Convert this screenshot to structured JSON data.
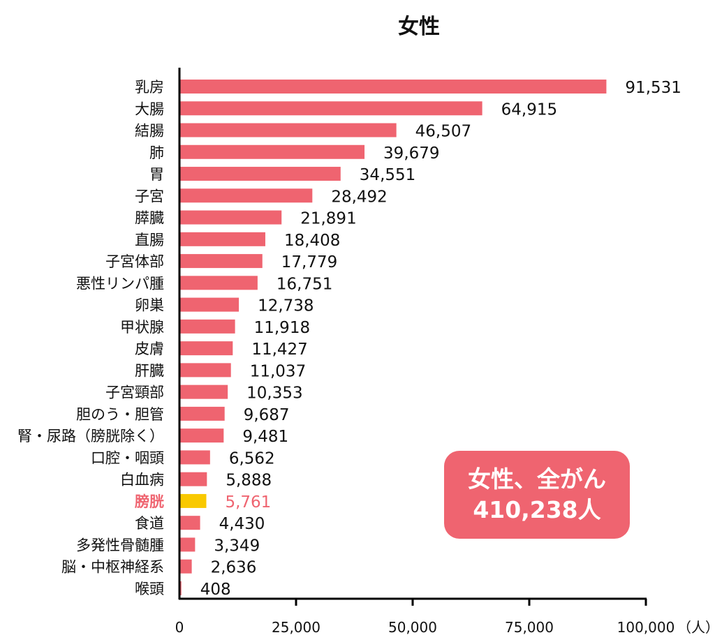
{
  "chart_data": {
    "type": "bar",
    "orientation": "horizontal",
    "title": "女性",
    "xlabel": "（人）",
    "xlim": [
      0,
      100000
    ],
    "xticks": [
      "0",
      "25,000",
      "50,000",
      "75,000",
      "100,000"
    ],
    "xtick_values": [
      0,
      25000,
      50000,
      75000,
      100000
    ],
    "categories": [
      "乳房",
      "大腸",
      "結腸",
      "肺",
      "胃",
      "子宮",
      "膵臓",
      "直腸",
      "子宮体部",
      "悪性リンパ腫",
      "卵巣",
      "甲状腺",
      "皮膚",
      "肝臓",
      "子宮頸部",
      "胆のう・胆管",
      "腎・尿路（膀胱除く）",
      "口腔・咽頭",
      "白血病",
      "膀胱",
      "食道",
      "多発性骨髄腫",
      "脳・中枢神経系",
      "喉頭"
    ],
    "values": [
      91531,
      64915,
      46507,
      39679,
      34551,
      28492,
      21891,
      18408,
      17779,
      16751,
      12738,
      11918,
      11427,
      11037,
      10353,
      9687,
      9481,
      6562,
      5888,
      5761,
      4430,
      3349,
      2636,
      408
    ],
    "value_labels": [
      "91,531",
      "64,915",
      "46,507",
      "39,679",
      "34,551",
      "28,492",
      "21,891",
      "18,408",
      "17,779",
      "16,751",
      "12,738",
      "11,918",
      "11,427",
      "11,037",
      "10,353",
      "9,687",
      "9,481",
      "6,562",
      "5,888",
      "5,761",
      "4,430",
      "3,349",
      "2,636",
      "408"
    ],
    "highlight": "膀胱",
    "colors": {
      "bar": "#ef6470",
      "highlight_bar": "#f9c900",
      "highlight_text": "#ef6470"
    },
    "grid": false,
    "legend": "none"
  },
  "summary": {
    "line1": "女性、全がん",
    "line2": "410,238人"
  }
}
